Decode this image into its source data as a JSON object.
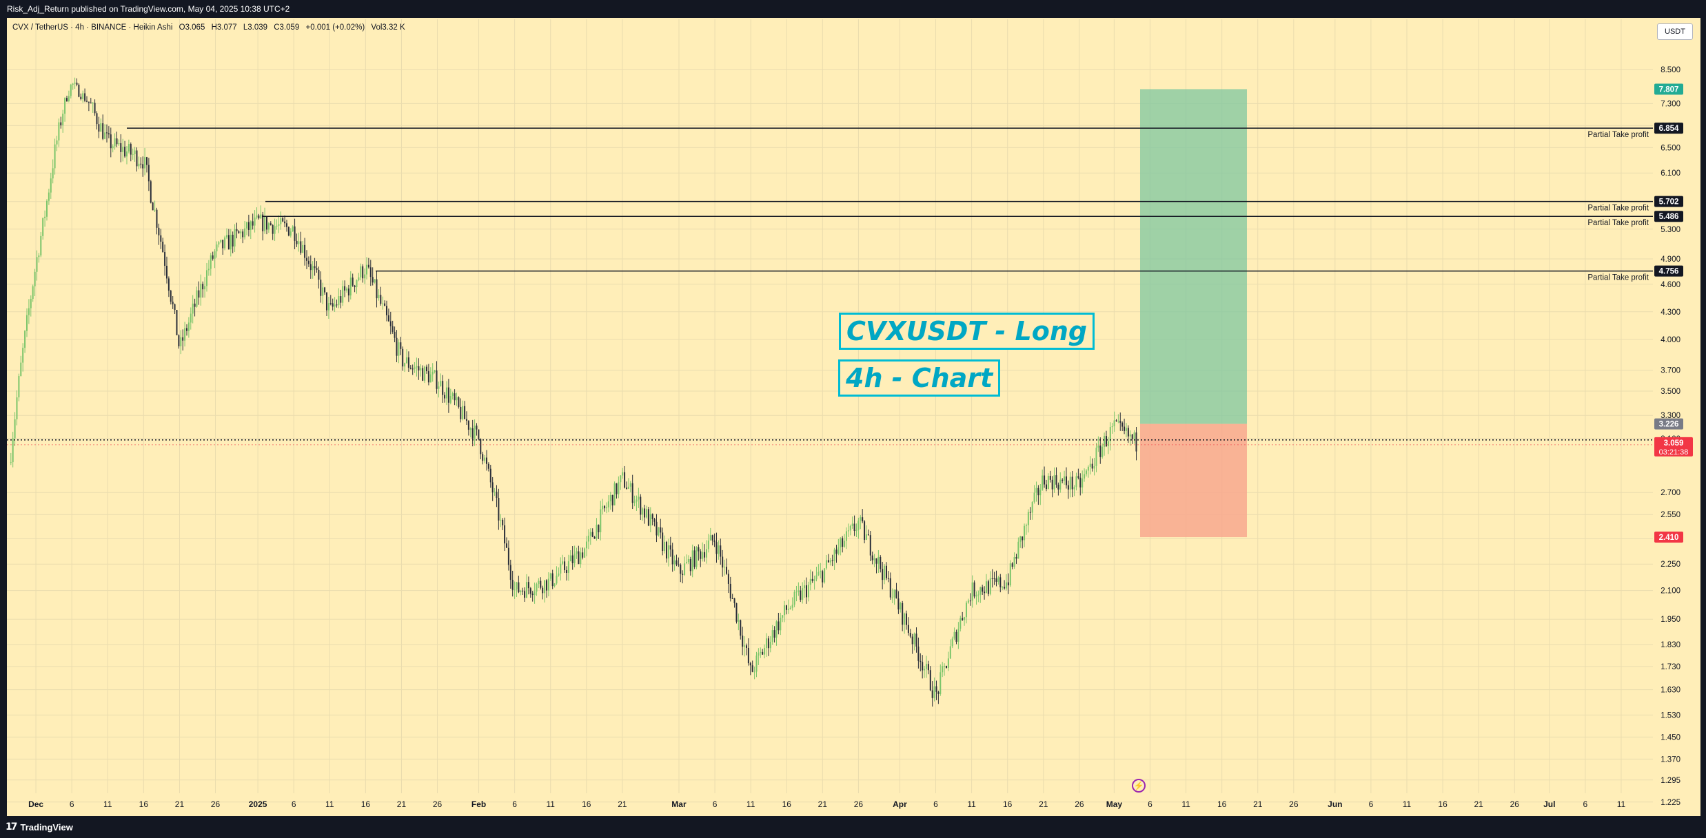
{
  "header": {
    "publisher": "Risk_Adj_Return published on TradingView.com, May 04, 2025 10:38 UTC+2"
  },
  "legend": {
    "symbol": "CVX / TetherUS · 4h · BINANCE · Heikin Ashi",
    "open": "O3.065",
    "high": "H3.077",
    "low": "L3.039",
    "close": "C3.059",
    "change": "+0.001 (+0.02%)",
    "volume": "Vol3.32 K"
  },
  "currency_button": "USDT",
  "annotations": {
    "title": "CVXUSDT - Long",
    "subtitle": "4h - Chart"
  },
  "footer": {
    "brand": "TradingView",
    "logo_icon": "tradingview-logo-icon"
  },
  "chart_data": {
    "type": "candlestick",
    "style": "Heikin Ashi",
    "interval": "4h",
    "ylim": [
      1.2,
      8.6
    ],
    "y_ticks": [
      "8.500",
      "7.300",
      "6.900",
      "6.500",
      "6.100",
      "5.700",
      "5.300",
      "4.900",
      "4.600",
      "4.300",
      "4.000",
      "3.700",
      "3.500",
      "3.300",
      "3.100",
      "2.700",
      "2.550",
      "2.400",
      "2.250",
      "2.100",
      "1.950",
      "1.830",
      "1.730",
      "1.630",
      "1.530",
      "1.450",
      "1.370",
      "1.295",
      "1.225"
    ],
    "x_ticks": [
      "Dec",
      "6",
      "11",
      "16",
      "21",
      "26",
      "2025",
      "6",
      "11",
      "16",
      "21",
      "26",
      "Feb",
      "6",
      "11",
      "16",
      "21",
      "Mar",
      "6",
      "11",
      "16",
      "21",
      "26",
      "Apr",
      "6",
      "11",
      "16",
      "21",
      "26",
      "May",
      "6",
      "11",
      "16",
      "21",
      "26",
      "Jun",
      "6",
      "11",
      "16",
      "21",
      "26",
      "Jul",
      "6",
      "11"
    ],
    "price_path": [
      {
        "d": "Dec 6",
        "p": 8.0
      },
      {
        "d": "Dec 11",
        "p": 6.6
      },
      {
        "d": "Dec 16",
        "p": 6.3
      },
      {
        "d": "Dec 21",
        "p": 3.9
      },
      {
        "d": "Dec 26",
        "p": 5.0
      },
      {
        "d": "2025",
        "p": 5.4
      },
      {
        "d": "Jan 6",
        "p": 5.3
      },
      {
        "d": "Jan 11",
        "p": 4.3
      },
      {
        "d": "Jan 16",
        "p": 4.8
      },
      {
        "d": "Jan 21",
        "p": 3.8
      },
      {
        "d": "Jan 26",
        "p": 3.6
      },
      {
        "d": "Feb",
        "p": 3.1
      },
      {
        "d": "Feb 6",
        "p": 2.1
      },
      {
        "d": "Feb 11",
        "p": 2.15
      },
      {
        "d": "Feb 16",
        "p": 2.35
      },
      {
        "d": "Feb 21",
        "p": 2.8
      },
      {
        "d": "Mar",
        "p": 2.2
      },
      {
        "d": "Mar 6",
        "p": 2.4
      },
      {
        "d": "Mar 11",
        "p": 1.7
      },
      {
        "d": "Mar 16",
        "p": 2.0
      },
      {
        "d": "Mar 21",
        "p": 2.2
      },
      {
        "d": "Mar 26",
        "p": 2.5
      },
      {
        "d": "Apr",
        "p": 2.0
      },
      {
        "d": "Apr 6",
        "p": 1.6
      },
      {
        "d": "Apr 11",
        "p": 2.1
      },
      {
        "d": "Apr 16",
        "p": 2.15
      },
      {
        "d": "Apr 21",
        "p": 2.8
      },
      {
        "d": "Apr 26",
        "p": 2.75
      },
      {
        "d": "May",
        "p": 3.2
      },
      {
        "d": "May 4",
        "p": 3.059
      }
    ],
    "current_price": {
      "value": "3.059",
      "countdown": "03:21:38",
      "color": "#f23645"
    },
    "horizontal_levels": [
      {
        "price": "6.854",
        "label": "Partial Take profit"
      },
      {
        "price": "5.702",
        "label": "Partial Take profit"
      },
      {
        "price": "5.486",
        "label": "Partial Take profit"
      },
      {
        "price": "4.756",
        "label": "Partial Take profit"
      }
    ],
    "position": {
      "side": "long",
      "entry": "3.226",
      "target": "7.807",
      "stop": "2.410",
      "stop_marker": "3.044",
      "profit_color": "#7fc7a0",
      "loss_color": "#f8a88e",
      "date_range": [
        "May 4",
        "May 19"
      ]
    },
    "candle_colors": {
      "up": "#7bc56a",
      "down": "#2a2e39"
    }
  }
}
